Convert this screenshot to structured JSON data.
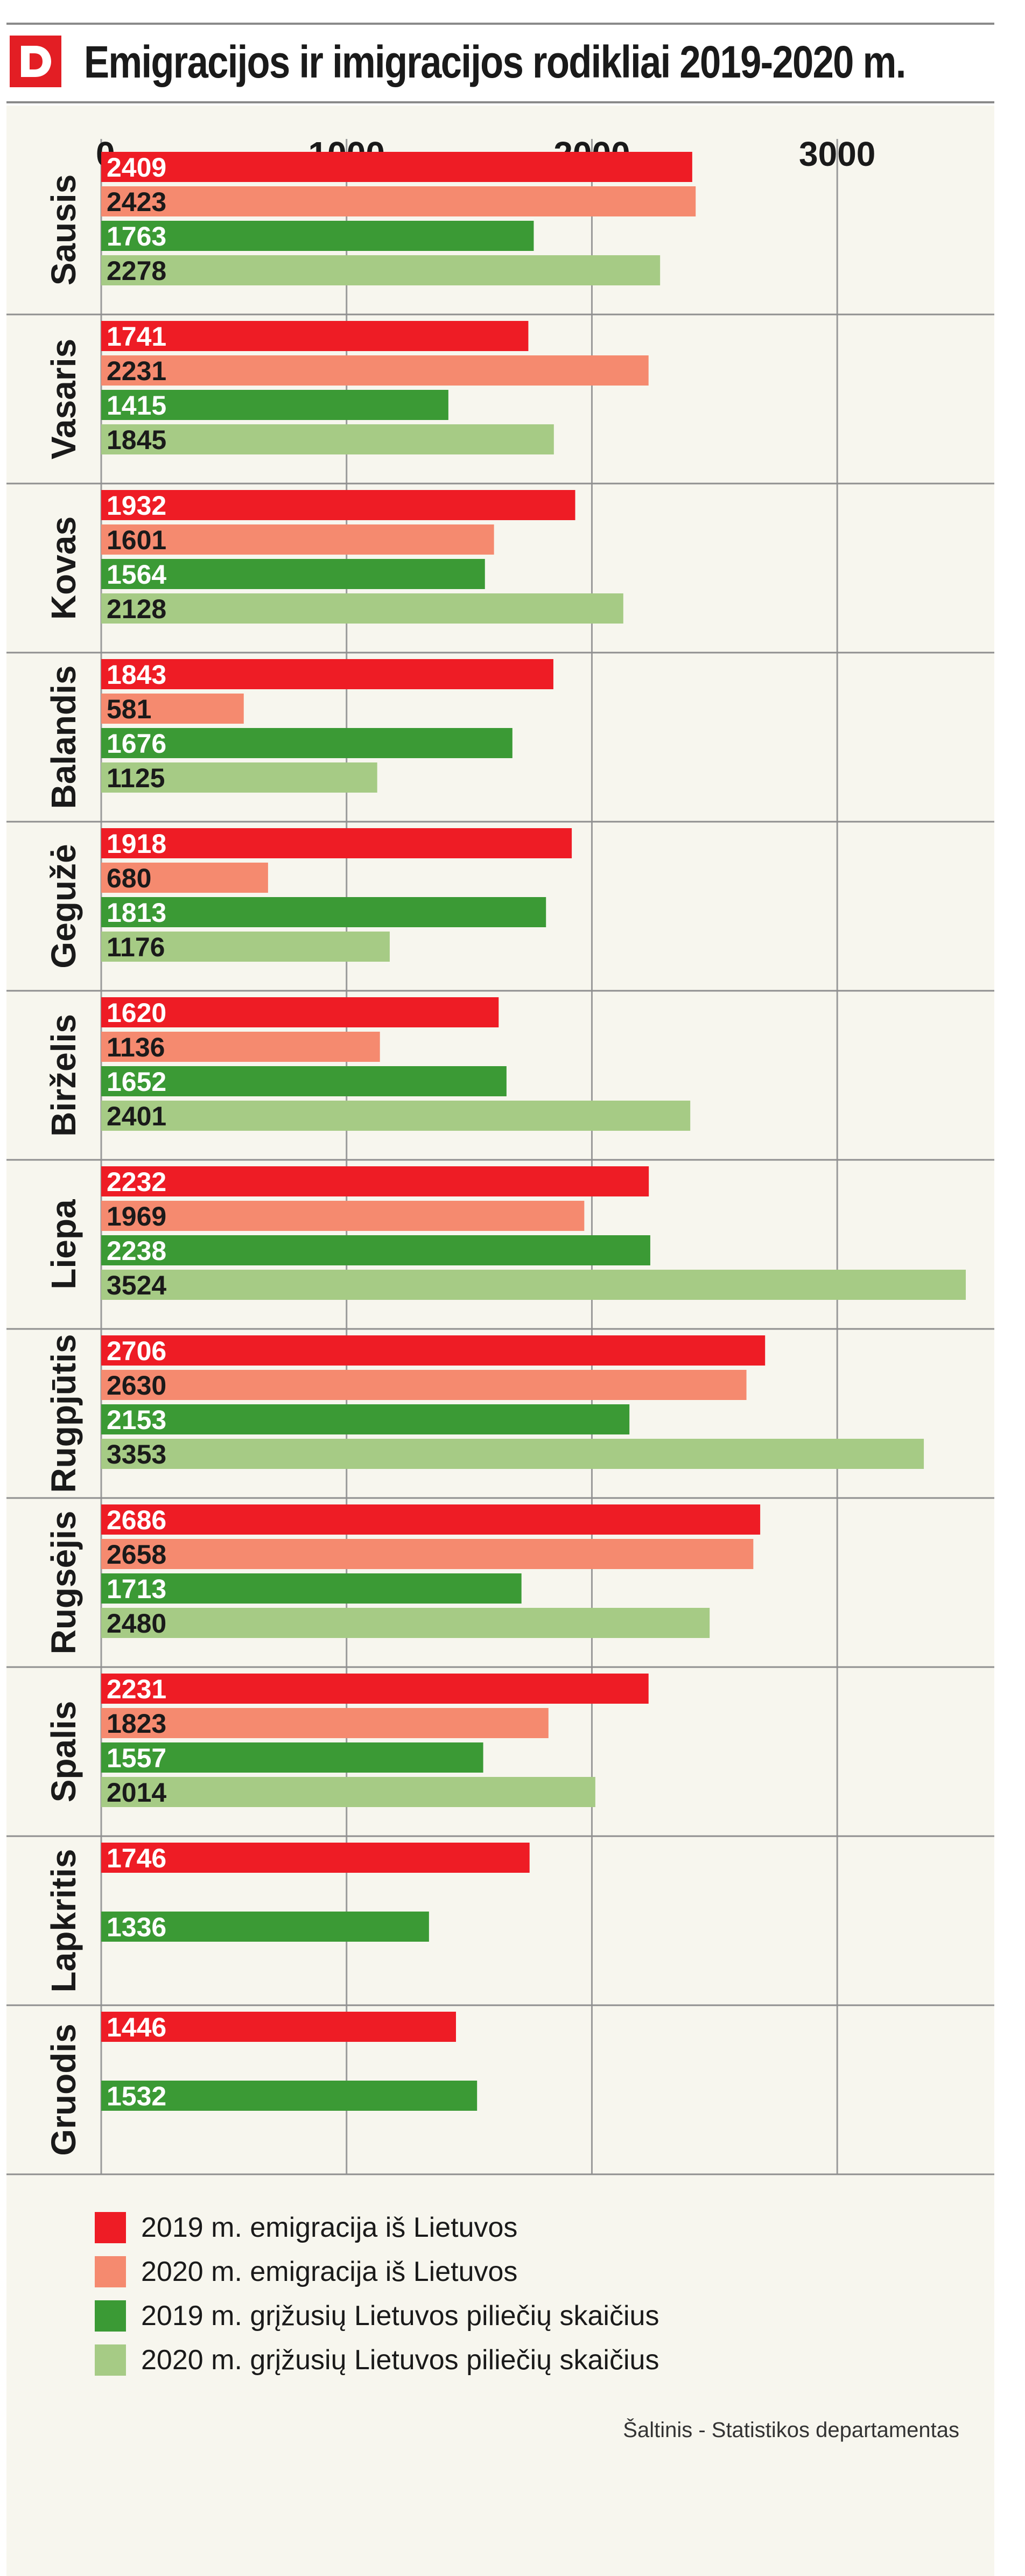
{
  "header": {
    "title": "Emigracijos ir imigracijos rodikliai 2019-2020 m.",
    "logo_letter": "D",
    "logo_color": "#e31e24"
  },
  "chart_data": {
    "type": "bar",
    "orientation": "horizontal",
    "title": "Emigracijos ir imigracijos rodikliai 2019-2020 m.",
    "xlabel": "",
    "ylabel": "",
    "xlim": [
      0,
      3524
    ],
    "x_ticks": [
      0,
      1000,
      2000,
      3000
    ],
    "x_tick_labels": [
      "0",
      "1000",
      "2000",
      "3000"
    ],
    "grid": "vertical",
    "legend_position": "bottom",
    "categories": [
      "Sausis",
      "Vasaris",
      "Kovas",
      "Balandis",
      "Gegužė",
      "Birželis",
      "Liepa",
      "Rugpjūtis",
      "Rugsėjis",
      "Spalis",
      "Lapkritis",
      "Gruodis"
    ],
    "series": [
      {
        "name": "2019 m. emigracija iš Lietuvos",
        "color": "#ee1c25",
        "values": [
          2409,
          1741,
          1932,
          1843,
          1918,
          1620,
          2232,
          2706,
          2686,
          2231,
          1746,
          1446
        ]
      },
      {
        "name": "2020 m. emigracija iš Lietuvos",
        "color": "#f58a6f",
        "values": [
          2423,
          2231,
          1601,
          581,
          680,
          1136,
          1969,
          2630,
          2658,
          1823,
          null,
          null
        ]
      },
      {
        "name": "2019 m. grįžusių Lietuvos piliečių skaičius",
        "color": "#3b9a35",
        "values": [
          1763,
          1415,
          1564,
          1676,
          1813,
          1652,
          2238,
          2153,
          1713,
          1557,
          1336,
          1532
        ]
      },
      {
        "name": "2020 m. grįžusių Lietuvos piliečių skaičius",
        "color": "#a6cb85",
        "values": [
          2278,
          1845,
          2128,
          1125,
          1176,
          2401,
          3524,
          3353,
          2480,
          2014,
          null,
          null
        ]
      }
    ],
    "source": "Šaltinis  - Statistikos departamentas"
  }
}
